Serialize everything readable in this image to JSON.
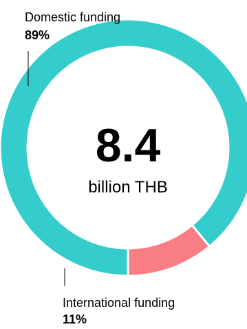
{
  "chart_data": {
    "type": "pie",
    "style": "donut",
    "title": "",
    "center_value": "8.4",
    "center_unit": "billion THB",
    "categories": [
      "Domestic funding",
      "International funding"
    ],
    "values": [
      89,
      11
    ],
    "value_labels": [
      "89%",
      "11%"
    ],
    "colors": [
      "#35CCCC",
      "#F97E83"
    ],
    "start_angle_deg": 180,
    "direction": "clockwise-from-bottom",
    "legend": "none"
  }
}
